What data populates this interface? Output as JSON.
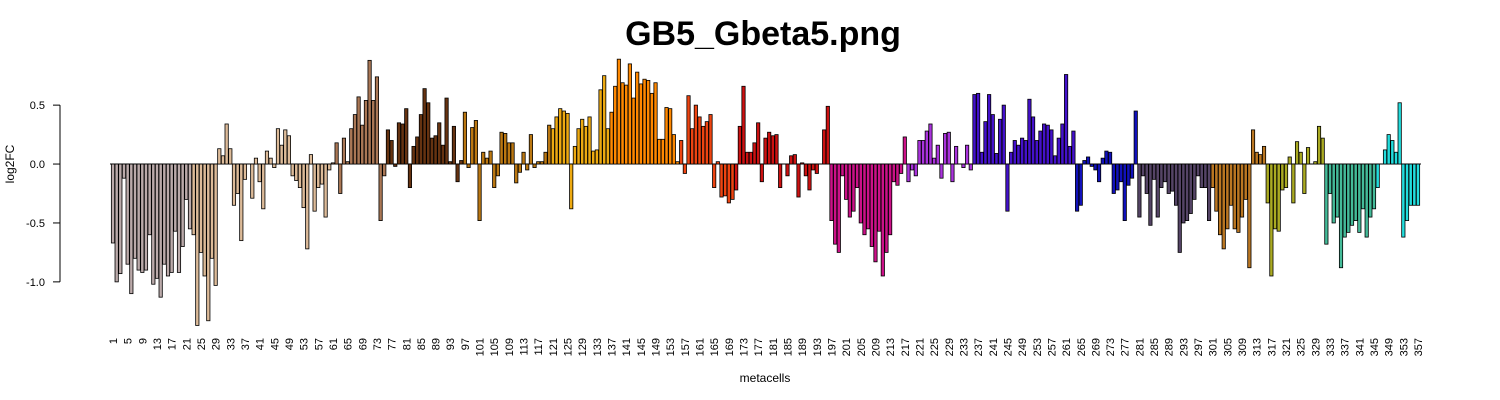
{
  "chart_data": {
    "type": "bar",
    "title": "GB5_Gbeta5.png",
    "x_label": "metacells",
    "y_label": "log2FC",
    "categories": [
      1,
      null,
      null,
      null,
      5,
      null,
      null,
      null,
      9,
      null,
      null,
      null,
      13,
      null,
      null,
      null,
      17,
      null,
      null,
      null,
      21,
      null,
      null,
      null,
      25,
      null,
      null,
      null,
      29,
      null,
      null,
      null,
      33,
      null,
      null,
      null,
      37,
      null,
      null,
      null,
      41,
      null,
      null,
      null,
      45,
      null,
      null,
      null,
      49,
      null,
      null,
      null,
      53,
      null,
      null,
      null,
      57,
      null,
      null,
      null,
      61,
      null,
      null,
      null,
      65,
      null,
      null,
      null,
      69,
      null,
      null,
      null,
      73,
      null,
      null,
      null,
      77,
      null,
      null,
      null,
      81,
      null,
      null,
      null,
      85,
      null,
      null,
      null,
      89,
      null,
      null,
      null,
      93,
      null,
      null,
      null,
      97,
      null,
      null,
      null,
      101,
      null,
      null,
      null,
      105,
      null,
      null,
      null,
      109,
      null,
      null,
      null,
      113,
      null,
      null,
      null,
      117,
      null,
      null,
      null,
      121,
      null,
      null,
      null,
      125,
      null,
      null,
      null,
      129,
      null,
      null,
      null,
      133,
      null,
      null,
      null,
      137,
      null,
      null,
      null,
      141,
      null,
      null,
      null,
      145,
      null,
      null,
      null,
      149,
      null,
      null,
      null,
      153,
      null,
      null,
      null,
      157,
      null,
      null,
      null,
      161,
      null,
      null,
      null,
      165,
      null,
      null,
      null,
      169,
      null,
      null,
      null,
      173,
      null,
      null,
      null,
      177,
      null,
      null,
      null,
      181,
      null,
      null,
      null,
      185,
      null,
      null,
      null,
      189,
      null,
      null,
      null,
      193,
      null,
      null,
      null,
      197,
      null,
      null,
      null,
      201,
      null,
      null,
      null,
      205,
      null,
      null,
      null,
      209,
      null,
      null,
      null,
      213,
      null,
      null,
      null,
      217,
      null,
      null,
      null,
      221,
      null,
      null,
      null,
      225,
      null,
      null,
      null,
      229,
      null,
      null,
      null,
      233,
      null,
      null,
      null,
      237,
      null,
      null,
      null,
      241,
      null,
      null,
      null,
      245,
      null,
      null,
      null,
      249,
      null,
      null,
      null,
      253,
      null,
      null,
      null,
      257,
      null,
      null,
      null,
      261,
      null,
      null,
      null,
      265,
      null,
      null,
      null,
      269,
      null,
      null,
      null,
      273,
      null,
      null,
      null,
      277,
      null,
      null,
      null,
      281,
      null,
      null,
      null,
      285,
      null,
      null,
      null,
      289,
      null,
      null,
      null,
      293,
      null,
      null,
      null,
      297,
      null,
      null,
      null,
      301,
      null,
      null,
      null,
      305,
      null,
      null,
      null,
      309,
      null,
      null,
      null,
      313,
      null,
      null,
      null,
      317,
      null,
      null,
      null,
      321,
      null,
      null,
      null,
      325,
      null,
      null,
      null,
      329,
      null,
      null,
      null,
      333,
      null,
      null,
      null,
      337,
      null,
      null,
      null,
      341,
      null,
      null,
      null,
      345,
      null,
      null,
      null,
      349,
      null,
      null,
      null,
      353,
      null,
      null,
      null,
      357
    ],
    "values": [
      -0.67,
      -1.0,
      -0.93,
      -0.12,
      -0.85,
      -1.1,
      -0.8,
      -0.9,
      -0.92,
      -0.9,
      -0.6,
      -1.02,
      -0.97,
      -1.13,
      -0.85,
      -0.95,
      -0.92,
      -0.57,
      -0.92,
      -0.7,
      -0.3,
      -0.55,
      -0.6,
      -1.37,
      -0.75,
      -0.95,
      -1.33,
      -0.8,
      -1.03,
      0.13,
      0.07,
      0.34,
      0.13,
      -0.35,
      -0.25,
      -0.65,
      -0.13,
      0.0,
      -0.29,
      0.05,
      -0.15,
      -0.38,
      0.11,
      0.05,
      -0.03,
      0.3,
      0.16,
      0.29,
      0.24,
      -0.1,
      -0.14,
      -0.2,
      -0.37,
      -0.72,
      0.08,
      -0.4,
      -0.2,
      -0.17,
      -0.45,
      -0.05,
      0.01,
      0.18,
      -0.25,
      0.22,
      0.02,
      0.3,
      0.42,
      0.57,
      0.33,
      0.54,
      0.88,
      0.54,
      0.74,
      -0.48,
      -0.1,
      0.29,
      0.2,
      -0.02,
      0.35,
      0.34,
      0.47,
      -0.2,
      0.15,
      0.23,
      0.42,
      0.64,
      0.52,
      0.22,
      0.24,
      0.35,
      0.16,
      0.56,
      0.02,
      0.32,
      -0.15,
      0.03,
      0.44,
      -0.03,
      0.31,
      0.37,
      -0.48,
      0.1,
      0.05,
      0.11,
      -0.2,
      -0.1,
      0.27,
      0.26,
      0.18,
      0.18,
      -0.16,
      -0.07,
      0.1,
      -0.05,
      0.25,
      -0.03,
      0.02,
      0.02,
      0.1,
      0.33,
      0.3,
      0.4,
      0.47,
      0.45,
      0.43,
      -0.38,
      0.15,
      0.3,
      0.38,
      0.32,
      0.4,
      0.11,
      0.12,
      0.63,
      0.75,
      0.3,
      0.44,
      0.66,
      0.89,
      0.69,
      0.67,
      0.85,
      0.56,
      0.78,
      0.68,
      0.72,
      0.71,
      0.6,
      0.69,
      0.21,
      0.21,
      0.48,
      0.47,
      0.25,
      0.02,
      0.2,
      -0.08,
      0.58,
      0.3,
      0.5,
      0.4,
      0.32,
      0.36,
      0.42,
      -0.2,
      0.02,
      -0.28,
      -0.27,
      -0.33,
      -0.3,
      -0.22,
      0.32,
      0.66,
      0.1,
      0.1,
      0.18,
      0.35,
      -0.15,
      0.22,
      0.27,
      0.24,
      0.25,
      -0.2,
      0.0,
      -0.1,
      0.07,
      0.08,
      -0.28,
      0.01,
      -0.1,
      -0.22,
      -0.05,
      -0.08,
      0.0,
      0.29,
      0.49,
      -0.48,
      -0.68,
      -0.75,
      -0.1,
      -0.3,
      -0.45,
      -0.4,
      -0.2,
      -0.5,
      -0.6,
      -0.55,
      -0.7,
      -0.83,
      -0.57,
      -0.95,
      -0.75,
      -0.6,
      -0.15,
      -0.18,
      -0.08,
      0.23,
      -0.15,
      -0.05,
      -0.1,
      0.2,
      0.2,
      0.28,
      0.34,
      0.05,
      0.16,
      -0.12,
      0.26,
      0.27,
      -0.15,
      0.15,
      0.0,
      -0.03,
      0.16,
      -0.05,
      0.59,
      0.6,
      0.1,
      0.36,
      0.59,
      0.42,
      0.09,
      0.38,
      0.5,
      -0.4,
      0.1,
      0.2,
      0.16,
      0.22,
      0.2,
      0.55,
      0.4,
      0.2,
      0.28,
      0.34,
      0.33,
      0.29,
      0.07,
      0.22,
      0.34,
      0.76,
      0.15,
      0.28,
      -0.4,
      -0.35,
      0.03,
      0.06,
      -0.02,
      -0.05,
      -0.15,
      0.05,
      0.11,
      0.1,
      -0.25,
      -0.22,
      -0.15,
      -0.48,
      -0.18,
      -0.12,
      0.45,
      -0.45,
      -0.1,
      -0.25,
      -0.52,
      -0.13,
      -0.45,
      -0.2,
      -0.15,
      -0.25,
      -0.23,
      -0.35,
      -0.75,
      -0.5,
      -0.48,
      -0.42,
      -0.3,
      -0.1,
      -0.2,
      -0.2,
      -0.48,
      -0.2,
      -0.4,
      -0.6,
      -0.72,
      -0.55,
      -0.35,
      -0.55,
      -0.58,
      -0.45,
      -0.3,
      -0.88,
      0.29,
      0.1,
      0.08,
      0.15,
      -0.33,
      -0.95,
      -0.55,
      -0.57,
      -0.22,
      -0.2,
      0.06,
      -0.33,
      0.19,
      0.1,
      -0.25,
      0.14,
      0.0,
      0.02,
      0.32,
      0.22,
      -0.68,
      -0.25,
      -0.5,
      -0.45,
      -0.88,
      -0.62,
      -0.58,
      -0.52,
      -0.48,
      -0.58,
      -0.38,
      -0.62,
      -0.45,
      -0.38,
      -0.2,
      0.0,
      0.12,
      0.25,
      0.2,
      0.1,
      0.52,
      -0.62,
      -0.48,
      -0.35,
      -0.35,
      -0.35
    ],
    "colors": [
      "#baa",
      "#baa",
      "#baa",
      "#baa",
      "#baa",
      "#baa",
      "#baa",
      "#baa",
      "#baa",
      "#baa",
      "#baa",
      "#baa",
      "#baa",
      "#baa",
      "#baa",
      "#baa",
      "#baa",
      "#baa",
      "#baa",
      "#baa",
      "#baa",
      "#baa",
      "#db9",
      "#db9",
      "#db9",
      "#db9",
      "#db9",
      "#db9",
      "#db9",
      "#db9",
      "#db9",
      "#db9",
      "#db9",
      "#db9",
      "#db9",
      "#db9",
      "#db9",
      "#db9",
      "#db9",
      "#db9",
      "#db9",
      "#db9",
      "#db9",
      "#db9",
      "#db9",
      "#db9",
      "#db9",
      "#db9",
      "#db9",
      "#db9",
      "#db9",
      "#db9",
      "#db9",
      "#db9",
      "#db9",
      "#db9",
      "#db9",
      "#db9",
      "#db9",
      "#db9",
      "#a75",
      "#a75",
      "#a75",
      "#a75",
      "#a75",
      "#a75",
      "#a75",
      "#a75",
      "#a75",
      "#a75",
      "#a75",
      "#a75",
      "#a75",
      "#a75",
      "#a75",
      "#631",
      "#631",
      "#631",
      "#631",
      "#631",
      "#631",
      "#631",
      "#631",
      "#631",
      "#631",
      "#631",
      "#631",
      "#631",
      "#631",
      "#631",
      "#631",
      "#631",
      "#631",
      "#631",
      "#631",
      "#631",
      "#b71",
      "#b71",
      "#b71",
      "#b71",
      "#b71",
      "#b71",
      "#b71",
      "#b71",
      "#b71",
      "#b71",
      "#b71",
      "#b71",
      "#b71",
      "#b71",
      "#b71",
      "#b71",
      "#b71",
      "#b71",
      "#b71",
      "#b71",
      "#b71",
      "#b71",
      "#b71",
      "#b71",
      "#ea1",
      "#ea1",
      "#ea1",
      "#ea1",
      "#ea1",
      "#ea1",
      "#ea1",
      "#ea1",
      "#ea1",
      "#ea1",
      "#ea1",
      "#ea1",
      "#ea1",
      "#ea1",
      "#ea1",
      "#ea1",
      "#f80",
      "#f80",
      "#f80",
      "#f80",
      "#f80",
      "#f80",
      "#f80",
      "#f80",
      "#f80",
      "#f80",
      "#f80",
      "#f80",
      "#f80",
      "#f80",
      "#f80",
      "#f80",
      "#f80",
      "#f80",
      "#f80",
      "#e41",
      "#e41",
      "#e41",
      "#e41",
      "#e41",
      "#e41",
      "#e41",
      "#e41",
      "#e41",
      "#e41",
      "#e41",
      "#e41",
      "#e41",
      "#e41",
      "#e41",
      "#c11",
      "#c11",
      "#c11",
      "#c11",
      "#c11",
      "#c11",
      "#c11",
      "#c11",
      "#c11",
      "#c11",
      "#c11",
      "#c11",
      "#c11",
      "#c11",
      "#c11",
      "#c11",
      "#c11",
      "#c11",
      "#c11",
      "#c11",
      "#c11",
      "#c11",
      "#c11",
      "#c11",
      "#c11",
      "#c11",
      "#c18",
      "#c18",
      "#c18",
      "#c18",
      "#c18",
      "#c18",
      "#c18",
      "#c18",
      "#c18",
      "#c18",
      "#c18",
      "#c18",
      "#c18",
      "#c18",
      "#c18",
      "#c18",
      "#c18",
      "#c18",
      "#c18",
      "#c18",
      "#c18",
      "#a3d",
      "#a3d",
      "#a3d",
      "#a3d",
      "#a3d",
      "#a3d",
      "#a3d",
      "#a3d",
      "#a3d",
      "#a3d",
      "#a3d",
      "#a3d",
      "#a3d",
      "#a3d",
      "#a3d",
      "#a3d",
      "#a3d",
      "#a3d",
      "#41c",
      "#41c",
      "#41c",
      "#41c",
      "#41c",
      "#41c",
      "#41c",
      "#41c",
      "#41c",
      "#41c",
      "#41c",
      "#41c",
      "#41c",
      "#41c",
      "#41c",
      "#41c",
      "#41c",
      "#41c",
      "#41c",
      "#41c",
      "#41c",
      "#41c",
      "#41c",
      "#41c",
      "#41c",
      "#41c",
      "#41c",
      "#41c",
      "#11b",
      "#11b",
      "#11b",
      "#11b",
      "#11b",
      "#11b",
      "#11b",
      "#11b",
      "#11b",
      "#11b",
      "#11b",
      "#11b",
      "#11b",
      "#11b",
      "#11b",
      "#11b",
      "#11b",
      "#546",
      "#546",
      "#546",
      "#546",
      "#546",
      "#546",
      "#546",
      "#546",
      "#546",
      "#546",
      "#546",
      "#546",
      "#546",
      "#546",
      "#546",
      "#546",
      "#546",
      "#546",
      "#546",
      "#546",
      "#b72",
      "#b72",
      "#b72",
      "#b72",
      "#b72",
      "#b72",
      "#b72",
      "#b72",
      "#b72",
      "#b72",
      "#b72",
      "#b72",
      "#b72",
      "#b72",
      "#b72",
      "#aa2",
      "#aa2",
      "#aa2",
      "#aa2",
      "#aa2",
      "#aa2",
      "#aa2",
      "#aa2",
      "#aa2",
      "#aa2",
      "#aa2",
      "#aa2",
      "#aa2",
      "#aa2",
      "#aa2",
      "#aa2",
      "#4b9",
      "#4b9",
      "#4b9",
      "#4b9",
      "#4b9",
      "#4b9",
      "#4b9",
      "#4b9",
      "#4b9",
      "#4b9",
      "#4b9",
      "#4b9",
      "#4b9",
      "#4b9",
      "#2dd",
      "#2dd",
      "#2dd",
      "#2dd",
      "#2dd",
      "#2dd",
      "#2dd",
      "#2dd",
      "#2dd",
      "#2dd",
      "#2dd",
      "#2dd"
    ],
    "ylim": [
      -1.4,
      0.9
    ],
    "yticks": [
      {
        "value": -1,
        "label": "-1.0"
      },
      {
        "value": -0.5,
        "label": "-0.5"
      },
      {
        "value": 0,
        "label": "0.0"
      },
      {
        "value": 0.5,
        "label": "0.5"
      }
    ]
  }
}
